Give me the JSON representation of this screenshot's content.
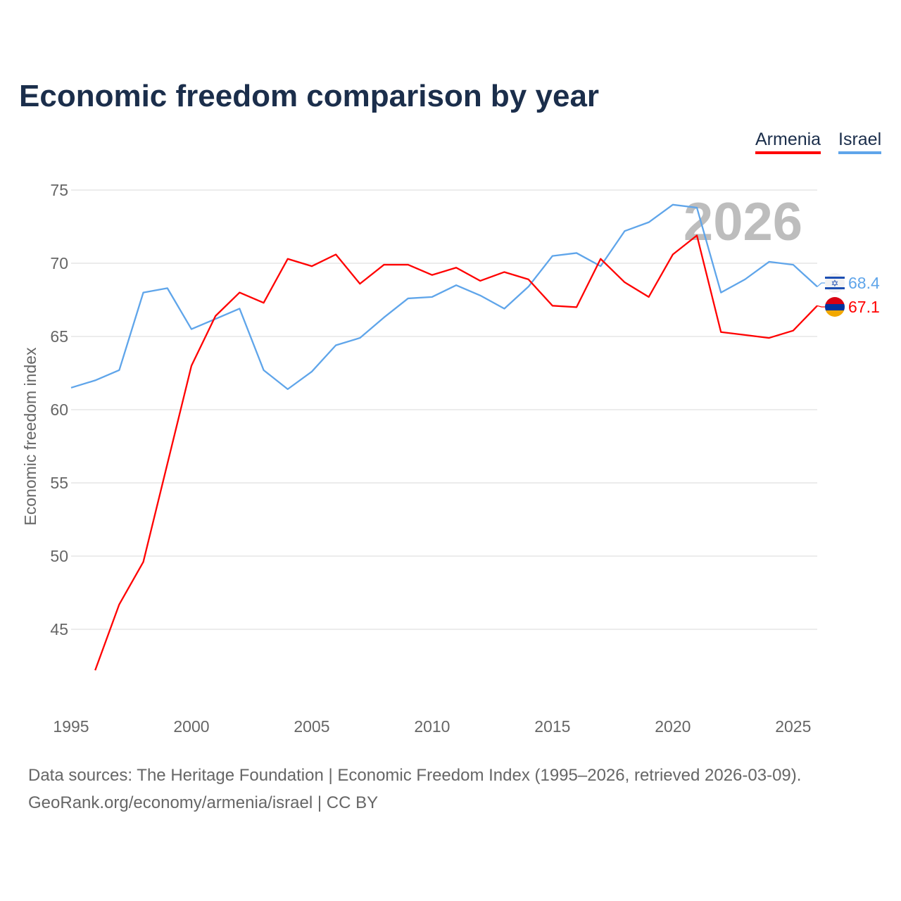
{
  "title": "Economic freedom comparison by year",
  "footer": {
    "line1": "Data sources: The Heritage Foundation | Economic Freedom Index (1995–2026, retrieved 2026-03-09).",
    "line2": "GeoRank.org/economy/armenia/israel | CC BY"
  },
  "chart_data": {
    "type": "line",
    "title": "Economic freedom comparison by year",
    "xlabel": "",
    "ylabel": "Economic freedom index",
    "xlim": [
      1995,
      2026
    ],
    "ylim": [
      40.8,
      76
    ],
    "x_ticks": [
      1995,
      2000,
      2005,
      2010,
      2015,
      2020,
      2025
    ],
    "y_ticks": [
      45,
      50,
      55,
      60,
      65,
      70,
      75
    ],
    "grid": true,
    "legend_placement": "top-right",
    "year_watermark": "2026",
    "series": [
      {
        "name": "Armenia",
        "color": "#ff0000",
        "end_label": "67.1",
        "flag": "armenia-flag",
        "x": [
          1996,
          1997,
          1998,
          1999,
          2000,
          2001,
          2002,
          2003,
          2004,
          2005,
          2006,
          2007,
          2008,
          2009,
          2010,
          2011,
          2012,
          2013,
          2014,
          2015,
          2016,
          2017,
          2018,
          2019,
          2020,
          2021,
          2022,
          2023,
          2024,
          2025,
          2026
        ],
        "values": [
          42.2,
          46.7,
          49.6,
          56.3,
          63.0,
          66.4,
          68.0,
          67.3,
          70.3,
          69.8,
          70.6,
          68.6,
          69.9,
          69.9,
          69.2,
          69.7,
          68.8,
          69.4,
          68.9,
          67.1,
          67.0,
          70.3,
          68.7,
          67.7,
          70.6,
          71.9,
          65.3,
          65.1,
          64.9,
          65.4,
          67.1
        ]
      },
      {
        "name": "Israel",
        "color": "#5fa5ea",
        "end_label": "68.4",
        "flag": "israel-flag",
        "x": [
          1995,
          1996,
          1997,
          1998,
          1999,
          2000,
          2001,
          2002,
          2003,
          2004,
          2005,
          2006,
          2007,
          2008,
          2009,
          2010,
          2011,
          2012,
          2013,
          2014,
          2015,
          2016,
          2017,
          2018,
          2019,
          2020,
          2021,
          2022,
          2023,
          2024,
          2025,
          2026
        ],
        "values": [
          61.5,
          62.0,
          62.7,
          68.0,
          68.3,
          65.5,
          66.2,
          66.9,
          62.7,
          61.4,
          62.6,
          64.4,
          64.9,
          66.3,
          67.6,
          67.7,
          68.5,
          67.8,
          66.9,
          68.4,
          70.5,
          70.7,
          69.8,
          72.2,
          72.8,
          74.0,
          73.8,
          68.0,
          68.9,
          70.1,
          69.9,
          68.4
        ]
      }
    ]
  }
}
